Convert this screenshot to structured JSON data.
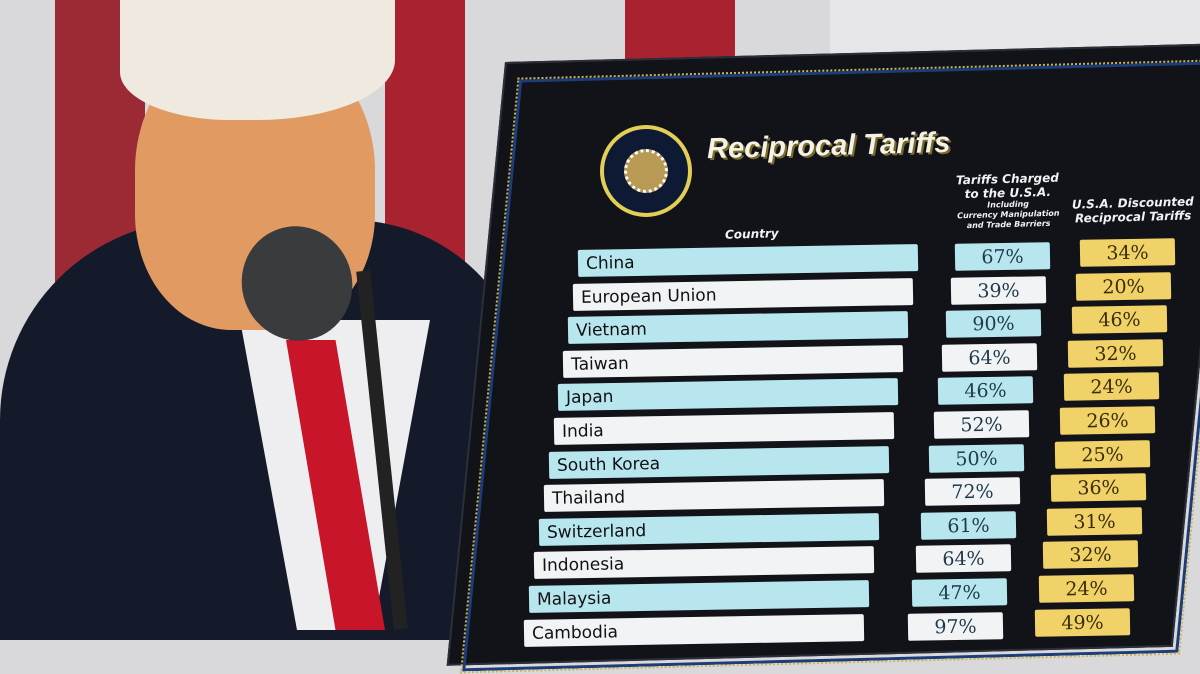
{
  "board": {
    "title": "Reciprocal Tariffs",
    "seal_text": "SEAL OF THE PRESIDENT OF THE UNITED STATES",
    "headers": {
      "country": "Country",
      "charged_line1": "Tariffs Charged",
      "charged_line2": "to the U.S.A.",
      "charged_line3": "Including",
      "charged_line4": "Currency Manipulation",
      "charged_line5": "and Trade Barriers",
      "discounted_line1": "U.S.A. Discounted",
      "discounted_line2": "Reciprocal Tariffs"
    },
    "rows": [
      {
        "country": "China",
        "charged": "67%",
        "discounted": "34%"
      },
      {
        "country": "European Union",
        "charged": "39%",
        "discounted": "20%"
      },
      {
        "country": "Vietnam",
        "charged": "90%",
        "discounted": "46%"
      },
      {
        "country": "Taiwan",
        "charged": "64%",
        "discounted": "32%"
      },
      {
        "country": "Japan",
        "charged": "46%",
        "discounted": "24%"
      },
      {
        "country": "India",
        "charged": "52%",
        "discounted": "26%"
      },
      {
        "country": "South Korea",
        "charged": "50%",
        "discounted": "25%"
      },
      {
        "country": "Thailand",
        "charged": "72%",
        "discounted": "36%"
      },
      {
        "country": "Switzerland",
        "charged": "61%",
        "discounted": "31%"
      },
      {
        "country": "Indonesia",
        "charged": "64%",
        "discounted": "32%"
      },
      {
        "country": "Malaysia",
        "charged": "47%",
        "discounted": "24%"
      },
      {
        "country": "Cambodia",
        "charged": "97%",
        "discounted": "49%"
      }
    ]
  },
  "colors": {
    "row_blue": "#b8e6ee",
    "row_white": "#f1f3f5",
    "gold": "#f0d269",
    "board": "#111318",
    "flag_red": "#a8232f"
  }
}
